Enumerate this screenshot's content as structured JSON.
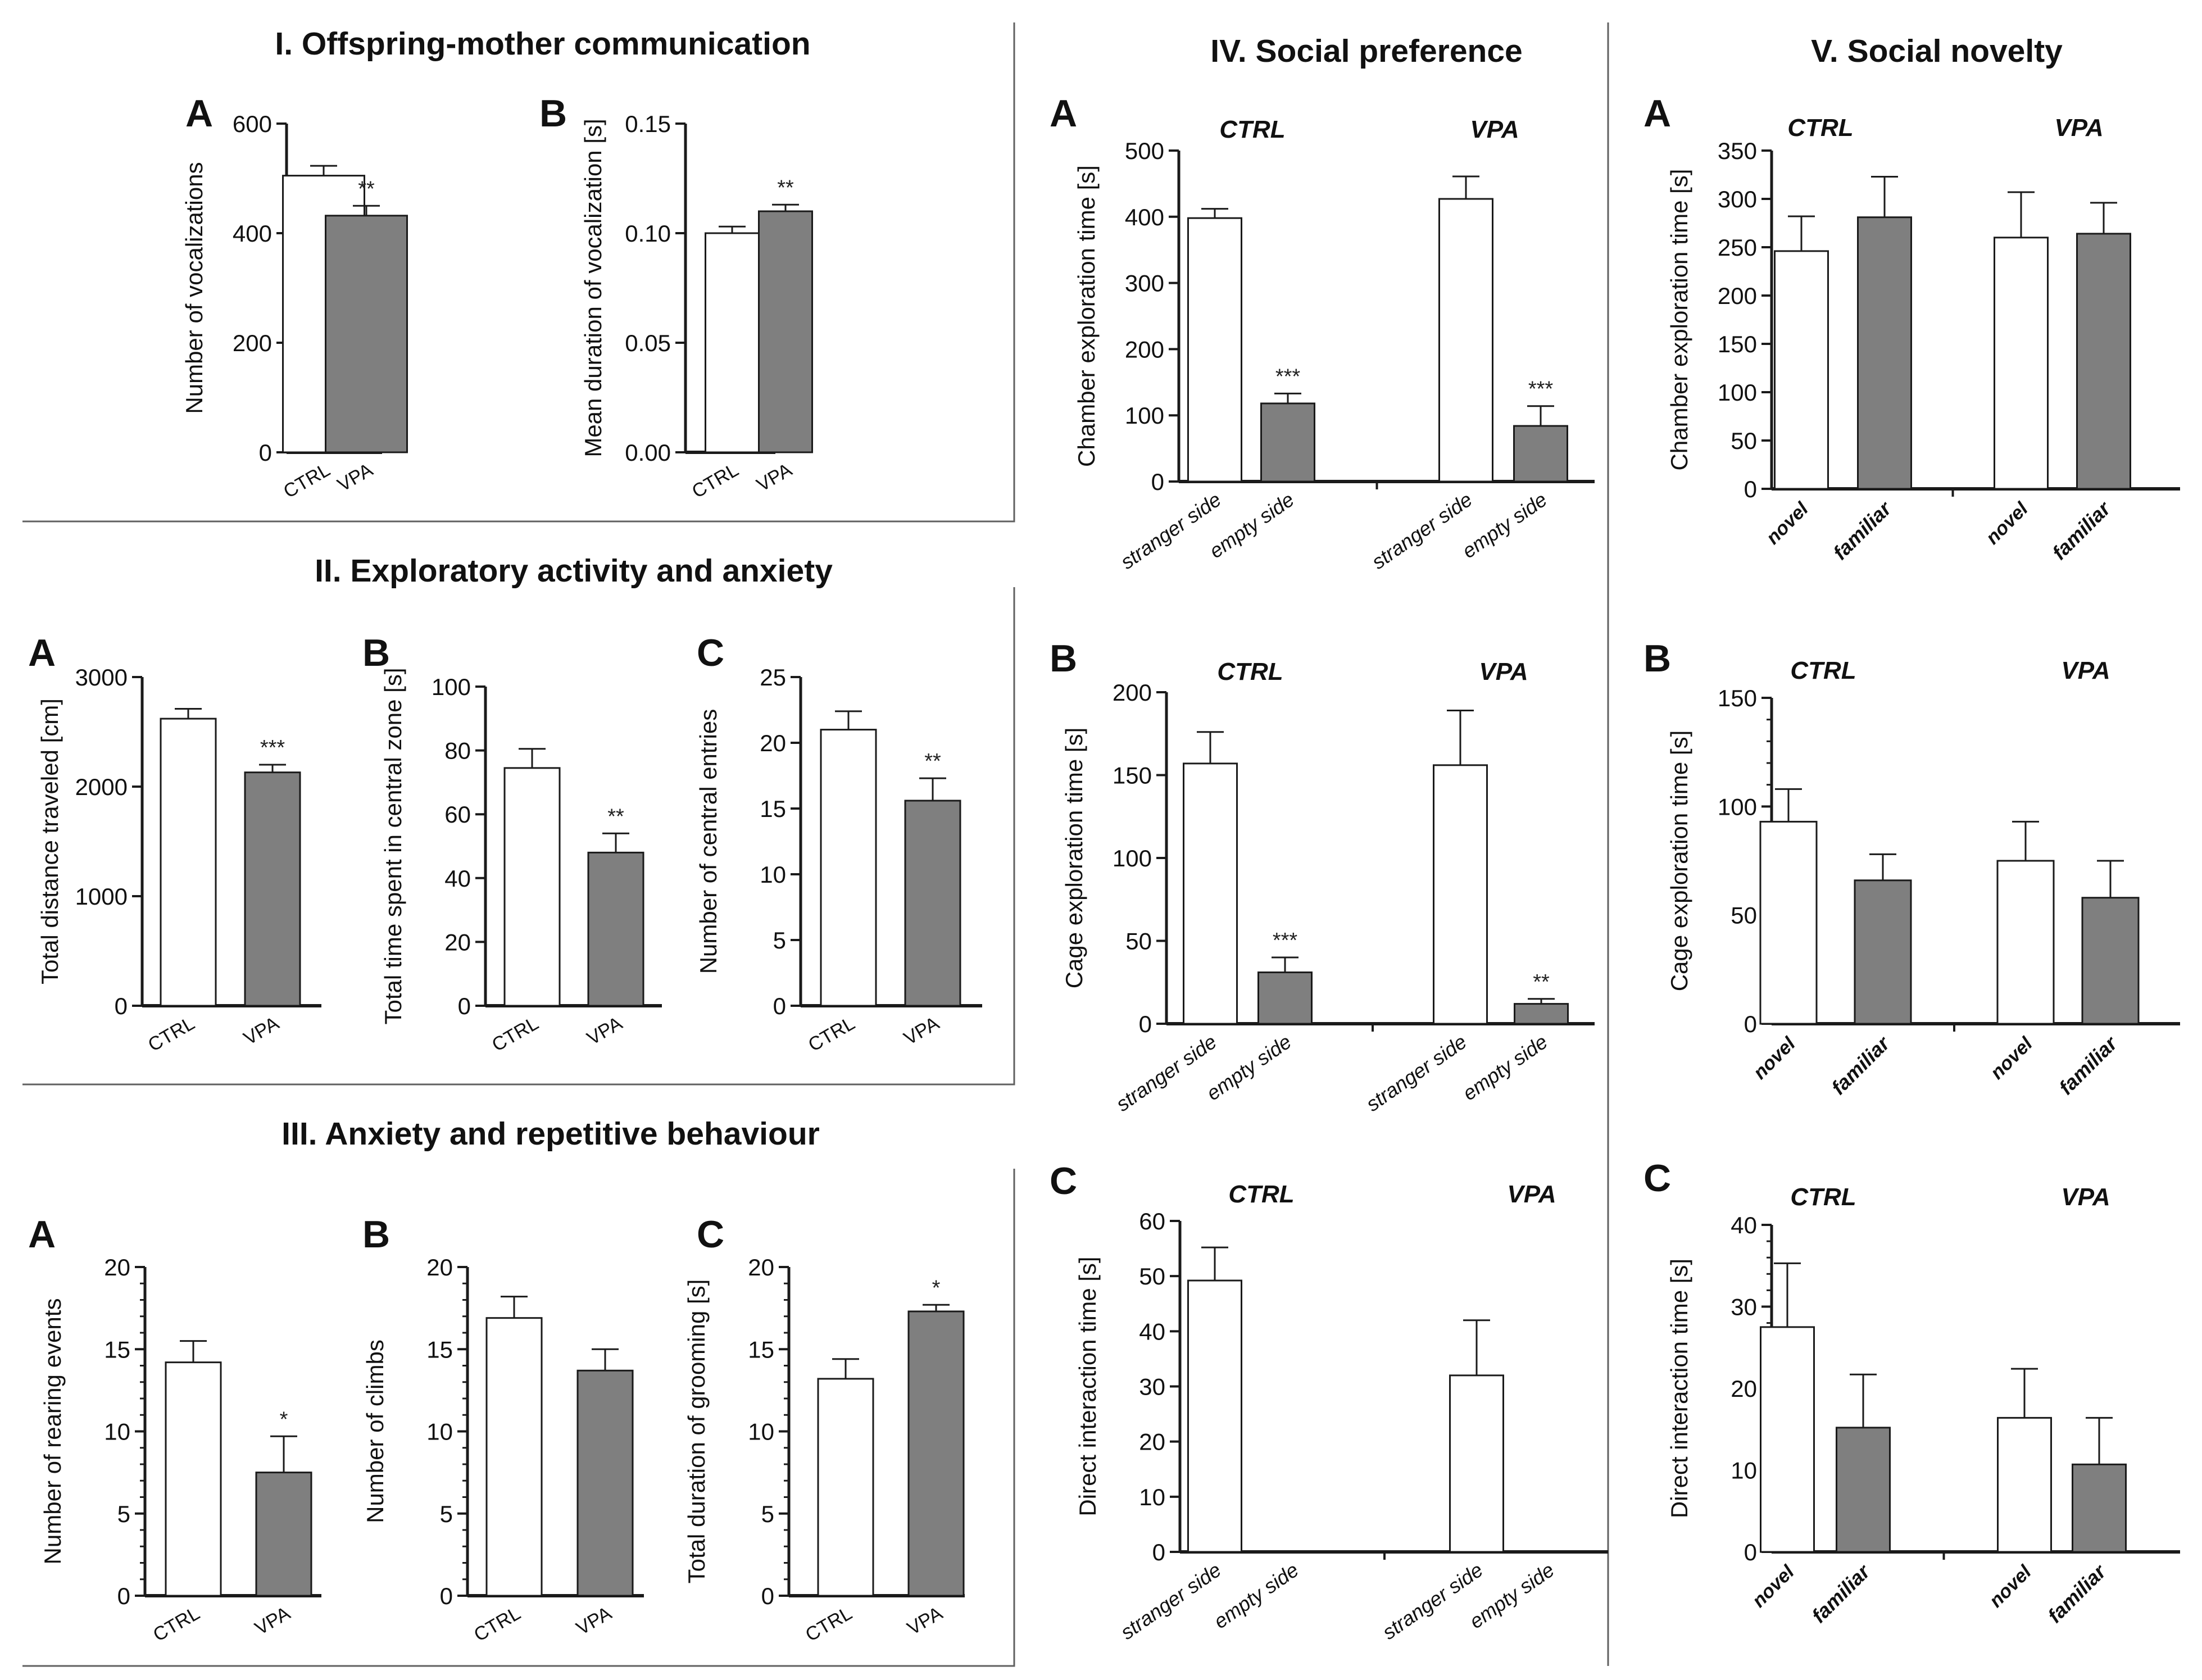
{
  "colors": {
    "open_bar": "#ffffff",
    "filled_bar": "#7f7f7f",
    "line": "#1a1a1a",
    "frame": "#606060"
  },
  "sections": [
    {
      "title": "I. Offspring-mother communication"
    },
    {
      "title": "II. Exploratory activity and anxiety"
    },
    {
      "title": "III. Anxiety and repetitive behaviour"
    },
    {
      "title": "IV. Social preference"
    },
    {
      "title": "V. Social novelty"
    }
  ],
  "chart_data": [
    {
      "id": "I-A",
      "section": "I",
      "letter": "A",
      "type": "bar",
      "ylabel": "Number of vocalizations",
      "ylim": [
        0,
        600
      ],
      "ticks": [
        "0",
        "200",
        "400",
        "600"
      ],
      "minor": 0,
      "group_titles": [],
      "categories": [
        "CTRL",
        "VPA"
      ],
      "values": [
        505,
        432
      ],
      "errors": [
        18,
        18
      ],
      "filled": [
        false,
        true
      ],
      "stars": [
        "",
        "**"
      ]
    },
    {
      "id": "I-B",
      "section": "I",
      "letter": "B",
      "type": "bar",
      "ylabel": "Mean duration of vocalization [s]",
      "ylim": [
        0,
        0.15
      ],
      "ticks": [
        "0.00",
        "0.05",
        "0.10",
        "0.15"
      ],
      "minor": 0,
      "group_titles": [],
      "categories": [
        "CTRL",
        "VPA"
      ],
      "values": [
        0.1,
        0.11
      ],
      "errors": [
        0.003,
        0.003
      ],
      "filled": [
        false,
        true
      ],
      "stars": [
        "",
        "**"
      ]
    },
    {
      "id": "II-A",
      "section": "II",
      "letter": "A",
      "type": "bar",
      "ylabel": "Total distance traveled [cm]",
      "ylim": [
        0,
        3000
      ],
      "ticks": [
        "0",
        "1000",
        "2000",
        "3000"
      ],
      "minor": 0,
      "group_titles": [],
      "categories": [
        "CTRL",
        "VPA"
      ],
      "values": [
        2620,
        2130
      ],
      "errors": [
        90,
        70
      ],
      "filled": [
        false,
        true
      ],
      "stars": [
        "",
        "***"
      ]
    },
    {
      "id": "II-B",
      "section": "II",
      "letter": "B",
      "type": "bar",
      "ylabel": "Total time spent in central zone [s]",
      "ylim": [
        0,
        100
      ],
      "ticks": [
        "0",
        "20",
        "40",
        "60",
        "80",
        "100"
      ],
      "minor": 0,
      "group_titles": [],
      "categories": [
        "CTRL",
        "VPA"
      ],
      "values": [
        74.5,
        48
      ],
      "errors": [
        6,
        6
      ],
      "filled": [
        false,
        true
      ],
      "stars": [
        "",
        "**"
      ]
    },
    {
      "id": "II-C",
      "section": "II",
      "letter": "C",
      "type": "bar",
      "ylabel": "Number of central entries",
      "ylim": [
        0,
        25
      ],
      "ticks": [
        "0",
        "5",
        "10",
        "15",
        "20",
        "25"
      ],
      "minor": 0,
      "group_titles": [],
      "categories": [
        "CTRL",
        "VPA"
      ],
      "values": [
        21,
        15.6
      ],
      "errors": [
        1.4,
        1.7
      ],
      "filled": [
        false,
        true
      ],
      "stars": [
        "",
        "**"
      ]
    },
    {
      "id": "III-A",
      "section": "III",
      "letter": "A",
      "type": "bar",
      "ylabel": "Number of rearing events",
      "ylim": [
        0,
        20
      ],
      "ticks": [
        "0",
        "5",
        "10",
        "15",
        "20"
      ],
      "minor": 4,
      "group_titles": [],
      "categories": [
        "CTRL",
        "VPA"
      ],
      "values": [
        14.2,
        7.5
      ],
      "errors": [
        1.3,
        2.2
      ],
      "filled": [
        false,
        true
      ],
      "stars": [
        "",
        "*"
      ]
    },
    {
      "id": "III-B",
      "section": "III",
      "letter": "B",
      "type": "bar",
      "ylabel": "Number of climbs",
      "ylim": [
        0,
        20
      ],
      "ticks": [
        "0",
        "5",
        "10",
        "15",
        "20"
      ],
      "minor": 4,
      "group_titles": [],
      "categories": [
        "CTRL",
        "VPA"
      ],
      "values": [
        16.9,
        13.7
      ],
      "errors": [
        1.3,
        1.3
      ],
      "filled": [
        false,
        true
      ],
      "stars": [
        "",
        ""
      ]
    },
    {
      "id": "III-C",
      "section": "III",
      "letter": "C",
      "type": "bar",
      "ylabel": "Total duration of grooming [s]",
      "ylim": [
        0,
        20
      ],
      "ticks": [
        "0",
        "5",
        "10",
        "15",
        "20"
      ],
      "minor": 4,
      "group_titles": [],
      "categories": [
        "CTRL",
        "VPA"
      ],
      "values": [
        13.2,
        17.3
      ],
      "errors": [
        1.2,
        0.4
      ],
      "filled": [
        false,
        true
      ],
      "stars": [
        "",
        "*"
      ]
    },
    {
      "id": "IV-A",
      "section": "IV",
      "letter": "A",
      "type": "bar",
      "ylabel": "Chamber exploration time [s]",
      "ylim": [
        0,
        500
      ],
      "ticks": [
        "0",
        "100",
        "200",
        "300",
        "400",
        "500"
      ],
      "minor": 0,
      "group_titles": [
        "CTRL",
        "VPA"
      ],
      "categories": [
        "stranger side",
        "empty side",
        "stranger side",
        "empty side"
      ],
      "values": [
        398,
        118,
        427,
        84
      ],
      "errors": [
        14,
        15,
        34,
        30
      ],
      "filled": [
        false,
        true,
        false,
        true
      ],
      "stars": [
        "",
        "***",
        "",
        "***"
      ]
    },
    {
      "id": "IV-B",
      "section": "IV",
      "letter": "B",
      "type": "bar",
      "ylabel": "Cage exploration time [s]",
      "ylim": [
        0,
        200
      ],
      "ticks": [
        "0",
        "50",
        "100",
        "150",
        "200"
      ],
      "minor": 0,
      "group_titles": [
        "CTRL",
        "VPA"
      ],
      "categories": [
        "stranger side",
        "empty side",
        "stranger side",
        "empty side"
      ],
      "values": [
        157,
        31,
        156,
        12
      ],
      "errors": [
        19,
        9,
        33,
        3
      ],
      "filled": [
        false,
        true,
        false,
        true
      ],
      "stars": [
        "",
        "***",
        "",
        "**"
      ]
    },
    {
      "id": "IV-C",
      "section": "IV",
      "letter": "C",
      "type": "bar",
      "ylabel": "Direct interaction time [s]",
      "ylim": [
        0,
        60
      ],
      "ticks": [
        "0",
        "10",
        "20",
        "30",
        "40",
        "50",
        "60"
      ],
      "minor": 0,
      "group_titles": [
        "CTRL",
        "VPA"
      ],
      "categories": [
        "stranger side",
        "empty side",
        "stranger side",
        "empty side"
      ],
      "values": [
        49.2,
        0,
        32,
        0
      ],
      "errors": [
        6,
        0,
        10,
        0
      ],
      "filled": [
        false,
        true,
        false,
        true
      ],
      "stars": [
        "",
        "",
        "",
        ""
      ]
    },
    {
      "id": "V-A",
      "section": "V",
      "letter": "A",
      "type": "bar",
      "ylabel": "Chamber exploration time [s]",
      "ylim": [
        0,
        350
      ],
      "ticks": [
        "0",
        "50",
        "100",
        "150",
        "200",
        "250",
        "300",
        "350"
      ],
      "minor": 0,
      "group_titles": [
        "CTRL",
        "VPA"
      ],
      "categories": [
        "novel",
        "familiar",
        "novel",
        "familiar"
      ],
      "values": [
        246,
        281,
        260,
        264
      ],
      "errors": [
        36,
        42,
        47,
        32
      ],
      "filled": [
        false,
        true,
        false,
        true
      ],
      "stars": [
        "",
        "",
        "",
        ""
      ]
    },
    {
      "id": "V-B",
      "section": "V",
      "letter": "B",
      "type": "bar",
      "ylabel": "Cage exploration time [s]",
      "ylim": [
        0,
        150
      ],
      "ticks": [
        "0",
        "50",
        "100",
        "150"
      ],
      "minor": 4,
      "group_titles": [
        "CTRL",
        "VPA"
      ],
      "categories": [
        "novel",
        "familiar",
        "novel",
        "familiar"
      ],
      "values": [
        93,
        66,
        75,
        58
      ],
      "errors": [
        15,
        12,
        18,
        17
      ],
      "filled": [
        false,
        true,
        false,
        true
      ],
      "stars": [
        "",
        "",
        "",
        ""
      ]
    },
    {
      "id": "V-C",
      "section": "V",
      "letter": "C",
      "type": "bar",
      "ylabel": "Direct interaction time [s]",
      "ylim": [
        0,
        40
      ],
      "ticks": [
        "0",
        "10",
        "20",
        "30",
        "40"
      ],
      "minor": 4,
      "group_titles": [
        "CTRL",
        "VPA"
      ],
      "categories": [
        "novel",
        "familiar",
        "novel",
        "familiar"
      ],
      "values": [
        27.5,
        15.2,
        16.4,
        10.7
      ],
      "errors": [
        7.8,
        6.5,
        6,
        5.7
      ],
      "filled": [
        false,
        true,
        false,
        true
      ],
      "stars": [
        "",
        "",
        "",
        ""
      ]
    }
  ]
}
